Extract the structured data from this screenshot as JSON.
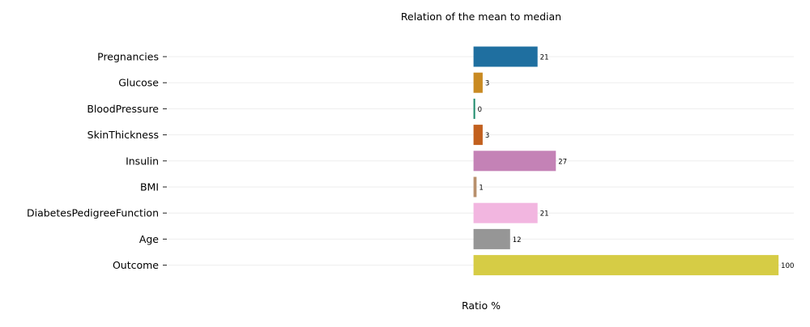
{
  "chart_data": {
    "type": "bar",
    "orientation": "horizontal",
    "title": "Relation of the mean to median",
    "xlabel": "Ratio %",
    "ylabel": "",
    "categories": [
      "Pregnancies",
      "Glucose",
      "BloodPressure",
      "SkinThickness",
      "Insulin",
      "BMI",
      "DiabetesPedigreeFunction",
      "Age",
      "Outcome"
    ],
    "values": [
      21,
      3,
      0,
      3,
      27,
      1,
      21,
      12,
      100
    ],
    "data_labels": [
      "21",
      "3",
      "0",
      "3",
      "27",
      "1",
      "21",
      "12",
      "100"
    ],
    "colors": [
      "#1f6fa0",
      "#c98a22",
      "#1a8a6a",
      "#c2601e",
      "#c482b6",
      "#b8906c",
      "#f2b6e0",
      "#969696",
      "#d6cc45"
    ],
    "xlim": [
      -100,
      105
    ],
    "grid": true,
    "legend": "none"
  }
}
